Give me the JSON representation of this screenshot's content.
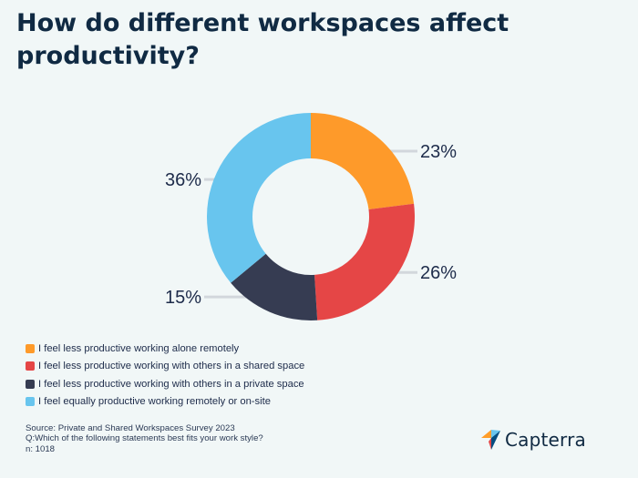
{
  "title": "How do different workspaces affect productivity?",
  "chart_data": {
    "type": "pie",
    "donut": true,
    "categories": [
      "I feel less productive working alone remotely",
      "I feel less productive working with others in a shared space",
      "I feel less productive working with others in a private space",
      "I feel equally productive working remotely or on-site"
    ],
    "values": [
      23,
      26,
      15,
      36
    ],
    "labels": [
      "23%",
      "26%",
      "15%",
      "36%"
    ],
    "colors": [
      "#fe9a2a",
      "#e54646",
      "#363c52",
      "#68c5ee"
    ],
    "legend_position": "bottom-left"
  },
  "source": {
    "line1": "Source: Private and Shared Workspaces Survey 2023",
    "line2": "Q:Which of the following statements best fits your work style?",
    "line3": "n: 1018"
  },
  "logo": {
    "text": "Capterra",
    "icon": "capterra-arrow-icon",
    "colors": [
      "#ff9d28",
      "#68c5ed",
      "#044d80",
      "#e54747"
    ]
  }
}
